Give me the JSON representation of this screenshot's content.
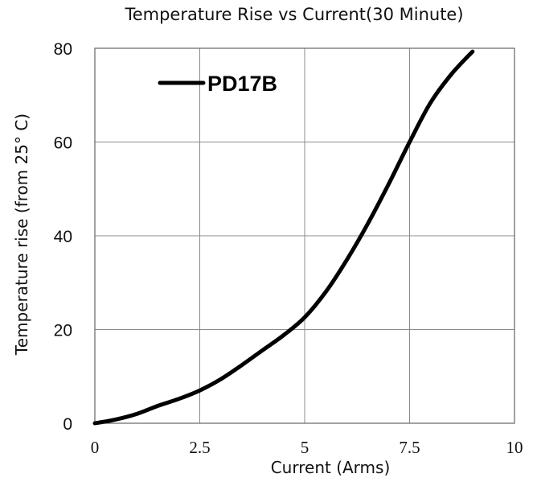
{
  "chart_data": {
    "type": "line",
    "title": "Temperature Rise vs Current(30 Minute)",
    "xlabel": "Current (Arms)",
    "ylabel": "Temperature rise (from 25° C)",
    "xlim": [
      0,
      10
    ],
    "ylim": [
      0,
      80
    ],
    "xticks": [
      {
        "value": 0,
        "label": "0"
      },
      {
        "value": 2.5,
        "label": "2.5"
      },
      {
        "value": 5,
        "label": "5"
      },
      {
        "value": 7.5,
        "label": "7.5"
      },
      {
        "value": 10,
        "label": "10"
      }
    ],
    "yticks": [
      {
        "value": 0,
        "label": "0"
      },
      {
        "value": 20,
        "label": "20"
      },
      {
        "value": 40,
        "label": "40"
      },
      {
        "value": 60,
        "label": "60"
      },
      {
        "value": 80,
        "label": "80"
      }
    ],
    "grid": true,
    "legend_position": "top-left",
    "series": [
      {
        "name": "PD17B",
        "color": "#000000",
        "x": [
          0,
          0.5,
          1,
          1.5,
          2,
          2.5,
          3,
          3.5,
          4,
          4.5,
          5,
          5.5,
          6,
          6.5,
          7,
          7.5,
          8,
          8.5,
          9
        ],
        "y": [
          0,
          0.8,
          2,
          3.7,
          5.2,
          7,
          9.4,
          12.4,
          15.6,
          18.8,
          22.6,
          28,
          34.8,
          42.5,
          51,
          60,
          68.4,
          74.5,
          79.3
        ]
      }
    ]
  }
}
